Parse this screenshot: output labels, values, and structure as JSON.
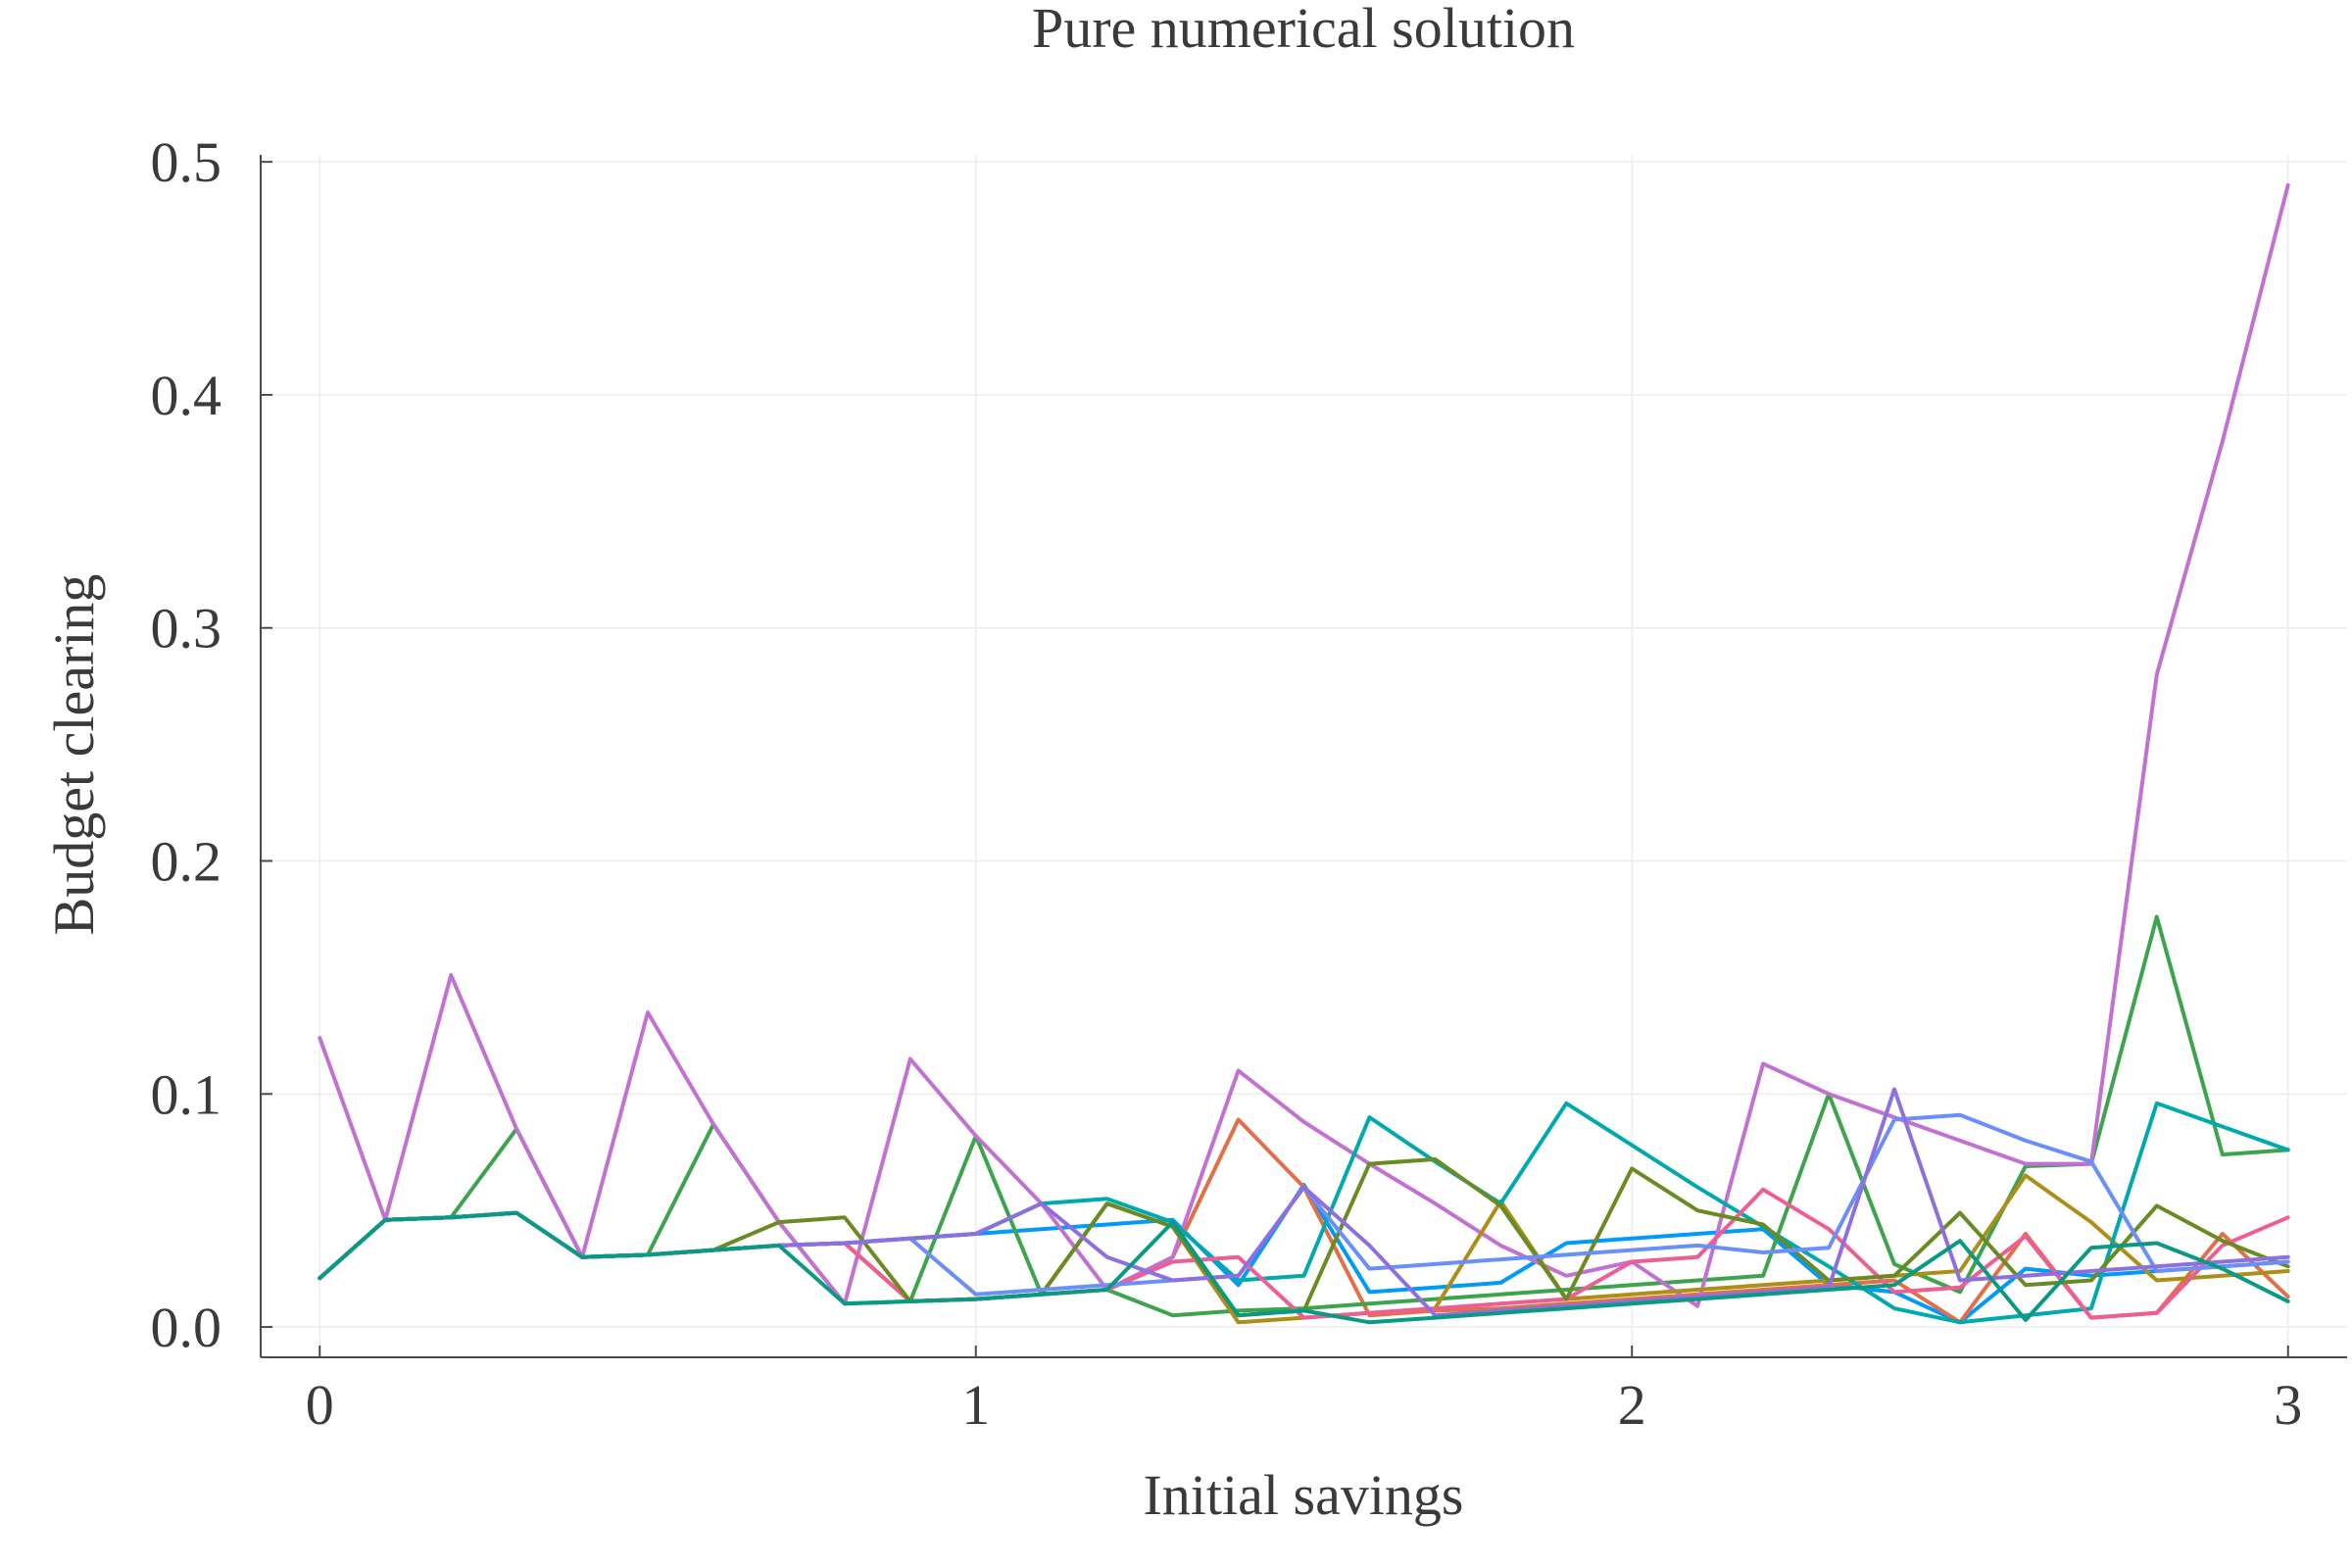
{
  "chart_data": {
    "type": "line",
    "title": "Pure numerical solution",
    "xlabel": "Initial savings",
    "ylabel": "Budget clearing",
    "xlim": [
      -0.09,
      3.09
    ],
    "ylim": [
      -0.013,
      0.503
    ],
    "xticks": [
      0,
      1,
      2,
      3
    ],
    "xtick_labels": [
      "0",
      "1",
      "2",
      "3"
    ],
    "yticks": [
      0.0,
      0.1,
      0.2,
      0.3,
      0.4,
      0.5
    ],
    "ytick_labels": [
      "0.0",
      "0.1",
      "0.2",
      "0.3",
      "0.4",
      "0.5"
    ],
    "grid": true,
    "legend": "none",
    "x": [
      0,
      0.1,
      0.2,
      0.3,
      0.4,
      0.5,
      0.6,
      0.7,
      0.8,
      0.9,
      1.0,
      1.1,
      1.2,
      1.3,
      1.4,
      1.5,
      1.6,
      1.7,
      1.8,
      1.9,
      2.0,
      2.1,
      2.2,
      2.3,
      2.4,
      2.5,
      2.6,
      2.7,
      2.8,
      2.9,
      3.0
    ],
    "series": [
      {
        "color": "#009af9",
        "values": [
          0.021,
          0.046,
          0.047,
          0.049,
          0.03,
          0.031,
          0.033,
          0.035,
          0.036,
          0.038,
          0.04,
          0.042,
          0.044,
          0.046,
          0.018,
          0.061,
          0.015,
          0.017,
          0.019,
          0.036,
          0.038,
          0.04,
          0.042,
          0.018,
          0.015,
          0.002,
          0.025,
          0.022,
          0.024,
          0.026,
          0.028
        ]
      },
      {
        "color": "#e26f46",
        "values": [
          0.021,
          0.046,
          0.047,
          0.049,
          0.03,
          0.031,
          0.033,
          0.035,
          0.036,
          0.011,
          0.012,
          0.014,
          0.016,
          0.03,
          0.089,
          0.06,
          0.005,
          0.007,
          0.008,
          0.01,
          0.012,
          0.014,
          0.016,
          0.018,
          0.02,
          0.002,
          0.04,
          0.004,
          0.006,
          0.04,
          0.013
        ]
      },
      {
        "color": "#3da44d",
        "values": [
          0.021,
          0.046,
          0.047,
          0.085,
          0.03,
          0.031,
          0.087,
          0.045,
          0.01,
          0.011,
          0.082,
          0.014,
          0.016,
          0.005,
          0.007,
          0.008,
          0.01,
          0.012,
          0.014,
          0.016,
          0.018,
          0.02,
          0.022,
          0.1,
          0.027,
          0.015,
          0.069,
          0.07,
          0.176,
          0.074,
          0.076
        ]
      },
      {
        "color": "#c271d2",
        "values": [
          0.124,
          0.046,
          0.151,
          0.085,
          0.03,
          0.135,
          0.087,
          0.045,
          0.01,
          0.115,
          0.082,
          0.053,
          0.016,
          0.03,
          0.11,
          0.088,
          0.07,
          0.053,
          0.035,
          0.022,
          0.028,
          0.009,
          0.113,
          0.1,
          0.09,
          0.08,
          0.07,
          0.07,
          0.28,
          0.38,
          0.49
        ]
      },
      {
        "color": "#ac8e18",
        "values": [
          0.021,
          0.046,
          0.047,
          0.049,
          0.03,
          0.031,
          0.033,
          0.035,
          0.036,
          0.011,
          0.012,
          0.014,
          0.053,
          0.043,
          0.002,
          0.004,
          0.006,
          0.008,
          0.054,
          0.012,
          0.014,
          0.016,
          0.018,
          0.02,
          0.022,
          0.024,
          0.065,
          0.045,
          0.02,
          0.022,
          0.024
        ]
      },
      {
        "color": "#00a9ad",
        "values": [
          0.021,
          0.046,
          0.047,
          0.049,
          0.03,
          0.031,
          0.033,
          0.035,
          0.036,
          0.038,
          0.04,
          0.053,
          0.055,
          0.045,
          0.02,
          0.022,
          0.09,
          0.071,
          0.053,
          0.096,
          0.078,
          0.06,
          0.043,
          0.026,
          0.008,
          0.002,
          0.005,
          0.008,
          0.096,
          0.086,
          0.076
        ]
      },
      {
        "color": "#ed5e93",
        "values": [
          0.021,
          0.046,
          0.047,
          0.049,
          0.03,
          0.031,
          0.033,
          0.035,
          0.036,
          0.011,
          0.012,
          0.014,
          0.016,
          0.028,
          0.03,
          0.004,
          0.006,
          0.008,
          0.01,
          0.012,
          0.028,
          0.03,
          0.059,
          0.042,
          0.015,
          0.017,
          0.039,
          0.004,
          0.006,
          0.035,
          0.047
        ]
      },
      {
        "color": "#698b22",
        "values": [
          0.021,
          0.046,
          0.047,
          0.049,
          0.03,
          0.031,
          0.033,
          0.045,
          0.047,
          0.011,
          0.012,
          0.014,
          0.053,
          0.043,
          0.005,
          0.007,
          0.07,
          0.072,
          0.052,
          0.012,
          0.068,
          0.05,
          0.044,
          0.02,
          0.022,
          0.049,
          0.018,
          0.02,
          0.052,
          0.037,
          0.026
        ]
      },
      {
        "color": "#6a8ff8",
        "values": [
          0.021,
          0.046,
          0.047,
          0.049,
          0.03,
          0.031,
          0.033,
          0.035,
          0.036,
          0.038,
          0.014,
          0.016,
          0.018,
          0.02,
          0.022,
          0.06,
          0.025,
          0.027,
          0.029,
          0.031,
          0.033,
          0.035,
          0.032,
          0.034,
          0.089,
          0.091,
          0.08,
          0.071,
          0.024,
          0.026,
          0.028
        ]
      },
      {
        "color": "#8e6fe0",
        "values": [
          0.021,
          0.046,
          0.047,
          0.049,
          0.03,
          0.031,
          0.033,
          0.035,
          0.036,
          0.038,
          0.04,
          0.053,
          0.03,
          0.02,
          0.022,
          0.06,
          0.035,
          0.005,
          0.007,
          0.009,
          0.011,
          0.013,
          0.015,
          0.017,
          0.102,
          0.02,
          0.022,
          0.024,
          0.026,
          0.028,
          0.03
        ]
      },
      {
        "color": "#0a9a84",
        "values": [
          0.021,
          0.046,
          0.047,
          0.049,
          0.03,
          0.031,
          0.033,
          0.035,
          0.01,
          0.011,
          0.012,
          0.014,
          0.016,
          0.045,
          0.005,
          0.007,
          0.002,
          0.004,
          0.006,
          0.008,
          0.01,
          0.012,
          0.014,
          0.016,
          0.018,
          0.037,
          0.003,
          0.034,
          0.036,
          0.025,
          0.011
        ]
      }
    ]
  }
}
